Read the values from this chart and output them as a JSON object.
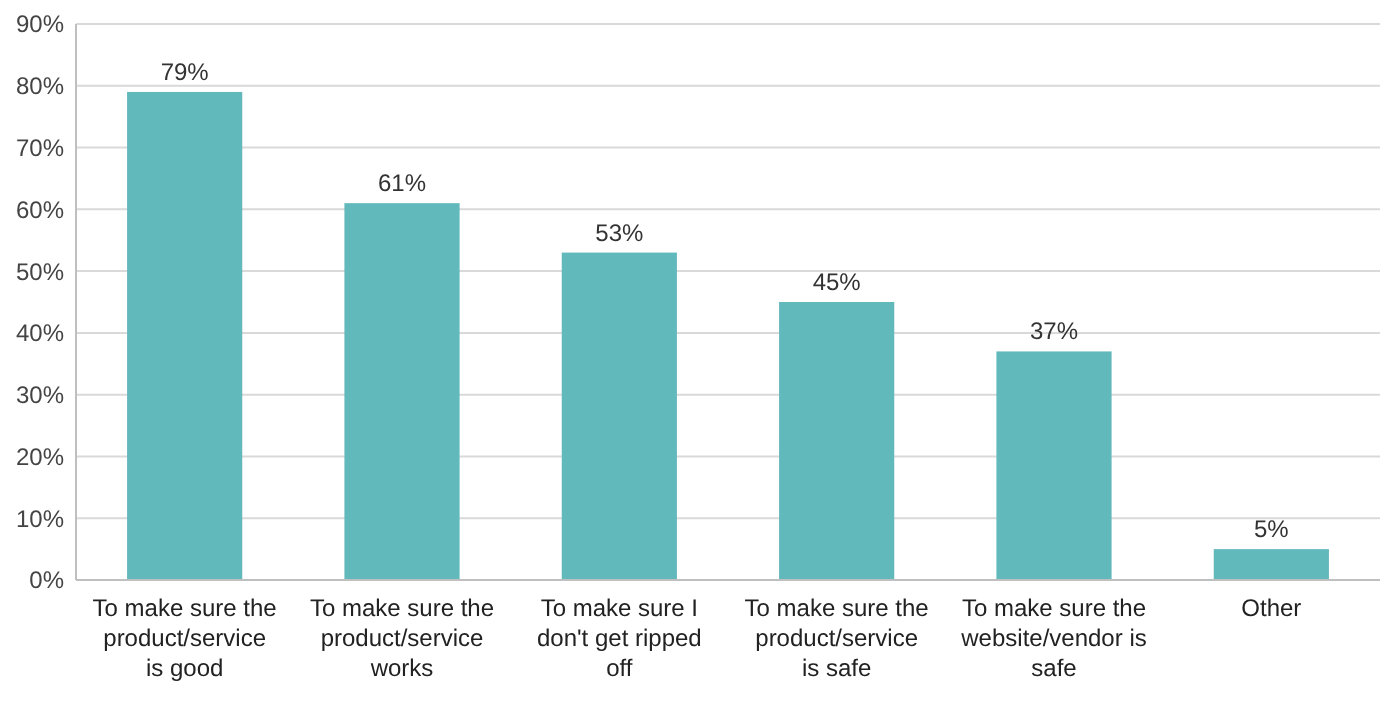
{
  "chart_data": {
    "type": "bar",
    "categories": [
      "To make sure the product/service is good",
      "To make sure the product/service works",
      "To make sure I don't get ripped off",
      "To make sure the product/service is safe",
      "To make sure the website/vendor is safe",
      "Other"
    ],
    "values": [
      79,
      61,
      53,
      45,
      37,
      5
    ],
    "value_labels": [
      "79%",
      "61%",
      "53%",
      "45%",
      "37%",
      "5%"
    ],
    "color": "#62b9bc",
    "ylim": [
      0,
      90
    ],
    "yticks": [
      {
        "value": 0,
        "label": "0%"
      },
      {
        "value": 10,
        "label": "10%"
      },
      {
        "value": 20,
        "label": "20%"
      },
      {
        "value": 30,
        "label": "30%"
      },
      {
        "value": 40,
        "label": "40%"
      },
      {
        "value": 50,
        "label": "50%"
      },
      {
        "value": 60,
        "label": "60%"
      },
      {
        "value": 70,
        "label": "70%"
      },
      {
        "value": 80,
        "label": "80%"
      },
      {
        "value": 90,
        "label": "90%"
      }
    ],
    "grid": "y"
  }
}
